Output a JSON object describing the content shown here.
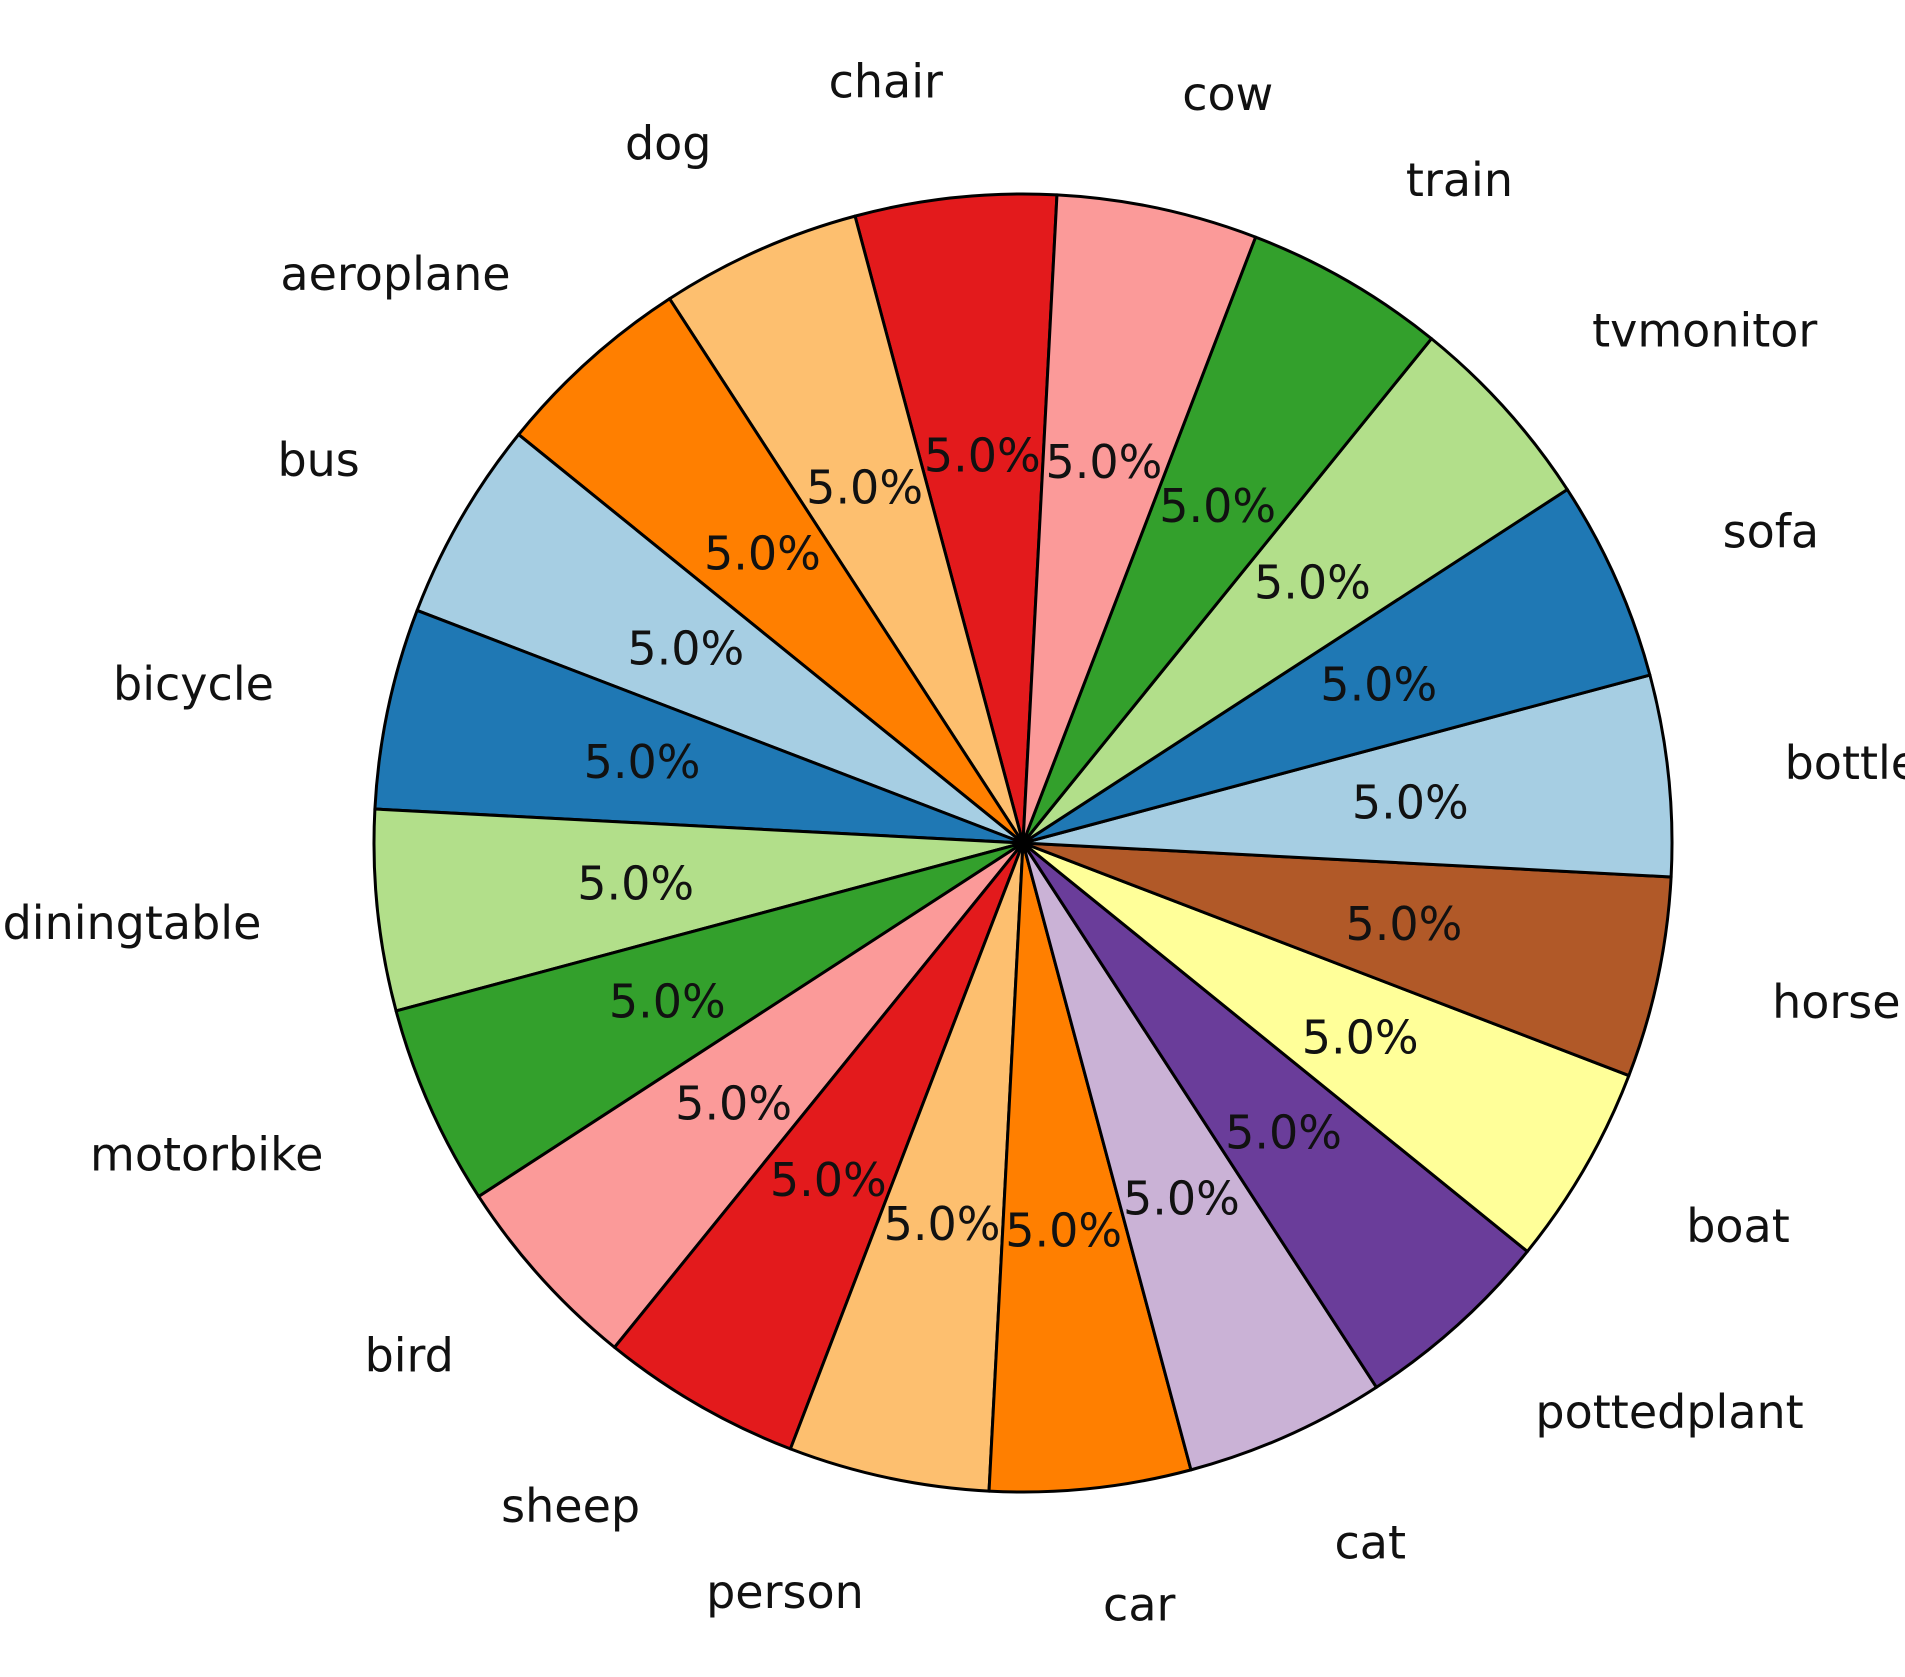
{
  "chart_data": {
    "type": "pie",
    "title": "",
    "start_angle_deg": 87,
    "direction": "counterclockwise",
    "slices": [
      {
        "label": "chair",
        "value": 5.0,
        "pct_label": "5.0%",
        "color": "#e31a1c"
      },
      {
        "label": "dog",
        "value": 5.0,
        "pct_label": "5.0%",
        "color": "#fdbf6f"
      },
      {
        "label": "aeroplane",
        "value": 5.0,
        "pct_label": "5.0%",
        "color": "#ff7f00"
      },
      {
        "label": "bus",
        "value": 5.0,
        "pct_label": "5.0%",
        "color": "#a6cee3"
      },
      {
        "label": "bicycle",
        "value": 5.0,
        "pct_label": "5.0%",
        "color": "#1f78b4"
      },
      {
        "label": "diningtable",
        "value": 5.0,
        "pct_label": "5.0%",
        "color": "#b2df8a"
      },
      {
        "label": "motorbike",
        "value": 5.0,
        "pct_label": "5.0%",
        "color": "#33a02c"
      },
      {
        "label": "bird",
        "value": 5.0,
        "pct_label": "5.0%",
        "color": "#fb9a99"
      },
      {
        "label": "sheep",
        "value": 5.0,
        "pct_label": "5.0%",
        "color": "#e31a1c"
      },
      {
        "label": "person",
        "value": 5.0,
        "pct_label": "5.0%",
        "color": "#fdbf6f"
      },
      {
        "label": "car",
        "value": 5.0,
        "pct_label": "5.0%",
        "color": "#ff7f00"
      },
      {
        "label": "cat",
        "value": 5.0,
        "pct_label": "5.0%",
        "color": "#cab2d6"
      },
      {
        "label": "pottedplant",
        "value": 5.0,
        "pct_label": "5.0%",
        "color": "#6a3d9a"
      },
      {
        "label": "boat",
        "value": 5.0,
        "pct_label": "5.0%",
        "color": "#ffff99"
      },
      {
        "label": "horse",
        "value": 5.0,
        "pct_label": "5.0%",
        "color": "#b15928"
      },
      {
        "label": "bottle",
        "value": 5.0,
        "pct_label": "5.0%",
        "color": "#a6cee3"
      },
      {
        "label": "sofa",
        "value": 5.0,
        "pct_label": "5.0%",
        "color": "#1f78b4"
      },
      {
        "label": "tvmonitor",
        "value": 5.0,
        "pct_label": "5.0%",
        "color": "#b2df8a"
      },
      {
        "label": "train",
        "value": 5.0,
        "pct_label": "5.0%",
        "color": "#33a02c"
      },
      {
        "label": "cow",
        "value": 5.0,
        "pct_label": "5.0%",
        "color": "#fb9a99"
      }
    ]
  }
}
